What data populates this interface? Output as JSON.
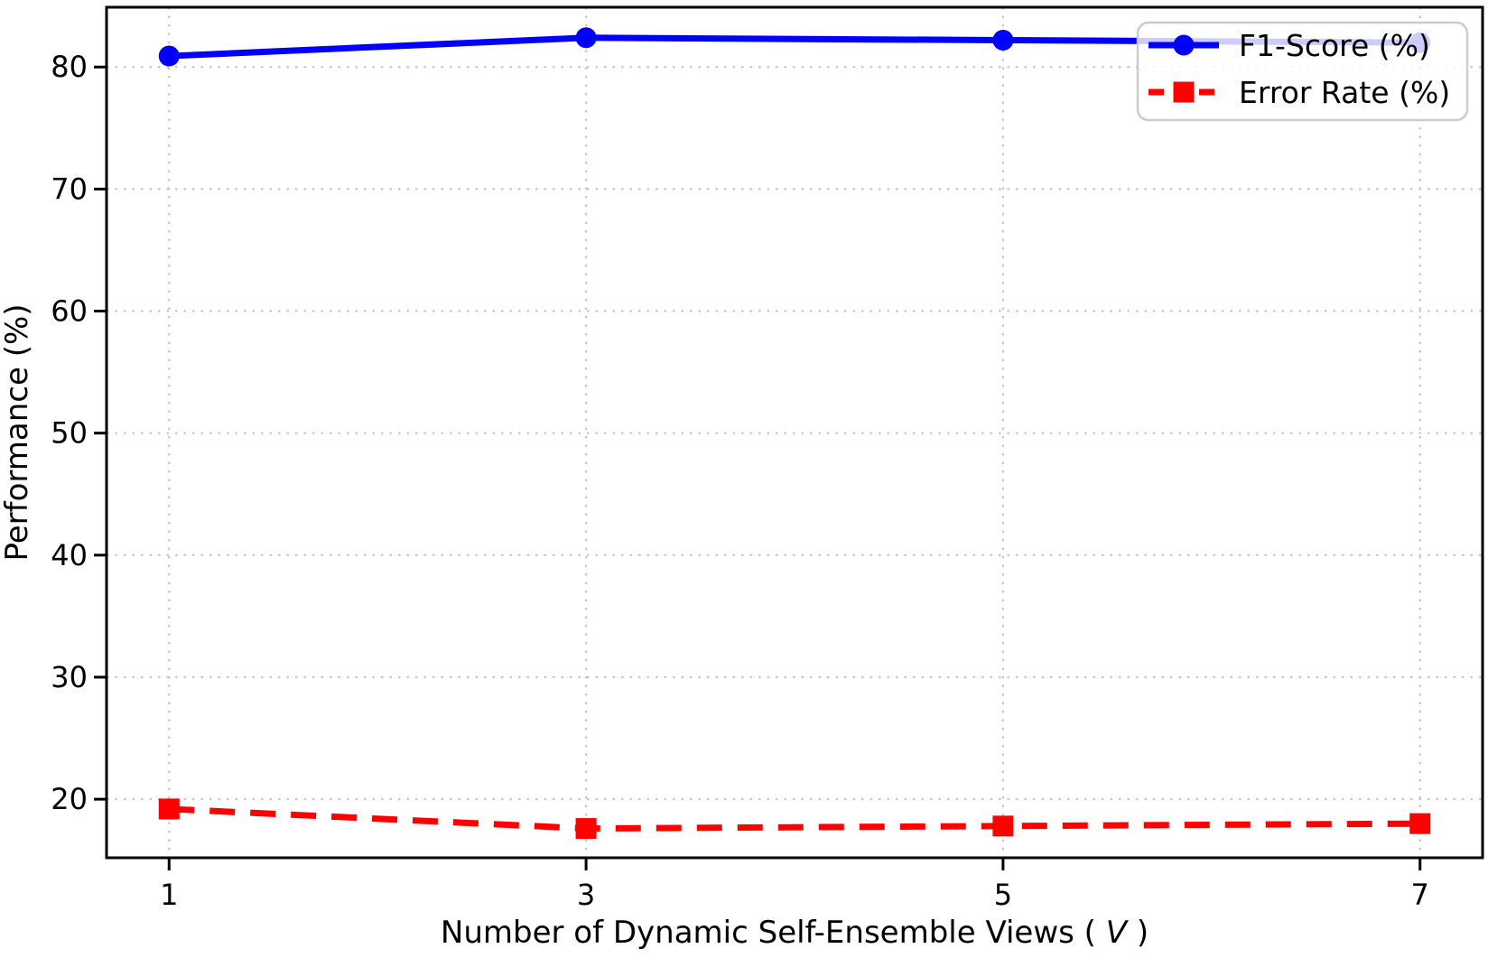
{
  "figure": {
    "background": "#ffffff",
    "spine_color": "#000000"
  },
  "chart_data": {
    "type": "line",
    "title": "",
    "xlabel": "Number of Dynamic Self-Ensemble Views (V)",
    "xlabel_parts": {
      "prefix": "Number of Dynamic Self-Ensemble Views (",
      "variable": "V",
      "suffix": ")"
    },
    "ylabel": "Performance (%)",
    "x": [
      1,
      3,
      5,
      7
    ],
    "xtick_labels": [
      "1",
      "3",
      "5",
      "7"
    ],
    "ytick_values": [
      20,
      30,
      40,
      50,
      60,
      70,
      80
    ],
    "xlim": [
      0.7,
      7.3
    ],
    "ylim": [
      15.2,
      84.9
    ],
    "grid": {
      "visible": true,
      "style": "dotted",
      "color": "#c6c6c6"
    },
    "legend": {
      "position": "upper-right",
      "border_color": "#cccccc",
      "background": "rgba(255,255,255,0.8)"
    },
    "series": [
      {
        "name": "F1-Score (%)",
        "color": "#0000ff",
        "marker": "circle",
        "line_style": "solid",
        "values": [
          80.9,
          82.4,
          82.2,
          82.0
        ]
      },
      {
        "name": "Error Rate (%)",
        "color": "#ff0000",
        "marker": "square",
        "line_style": "dashed",
        "values": [
          19.2,
          17.6,
          17.8,
          18.0
        ]
      }
    ]
  }
}
